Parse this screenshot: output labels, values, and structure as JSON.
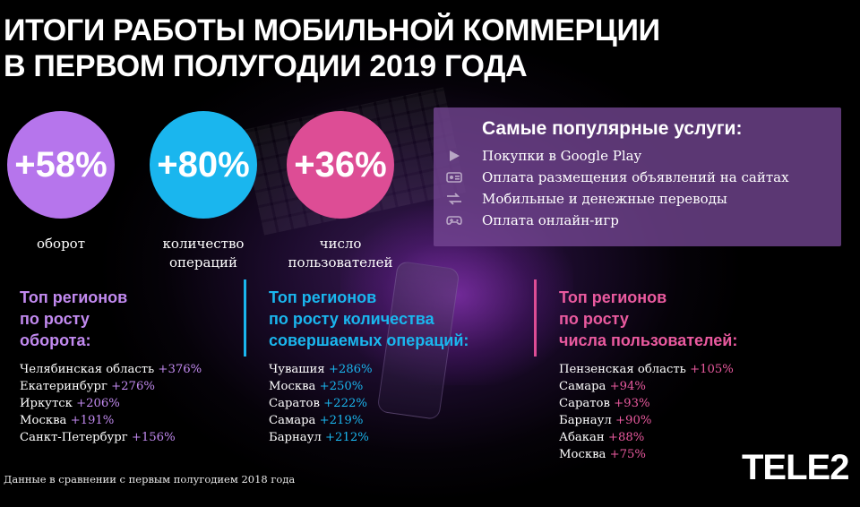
{
  "title": {
    "line1": "ИТОГИ РАБОТЫ МОБИЛЬНОЙ КОММЕРЦИИ",
    "line2": "В ПЕРВОМ ПОЛУГОДИИ 2019 ГОДА"
  },
  "stats": [
    {
      "value": "+58%",
      "label": "оборот",
      "color": "#b675ec"
    },
    {
      "value": "+80%",
      "label": "количество операций",
      "label_lines": [
        "количество",
        "операций"
      ],
      "color": "#1ab6ee"
    },
    {
      "value": "+36%",
      "label": "число пользователей",
      "label_lines": [
        "число",
        "пользователей"
      ],
      "color": "#dd4d95"
    }
  ],
  "popular_services": {
    "title": "Самые популярные услуги:",
    "items": [
      {
        "icon": "play-icon",
        "text": "Покупки в Google Play"
      },
      {
        "icon": "ad-icon",
        "text": "Оплата размещения объявлений на сайтах"
      },
      {
        "icon": "transfer-arrows-icon",
        "text": "Мобильные и денежные переводы"
      },
      {
        "icon": "gamepad-icon",
        "text": "Оплата онлайн-игр"
      }
    ],
    "box_color": "#744694"
  },
  "regions": [
    {
      "title_lines": [
        "Топ регионов",
        "по росту",
        "оборота:"
      ],
      "color": "#c28af0",
      "items": [
        {
          "name": "Челябинская область",
          "value": "+376%"
        },
        {
          "name": "Екатеринбург",
          "value": "+276%"
        },
        {
          "name": "Иркутск",
          "value": "+206%"
        },
        {
          "name": "Москва",
          "value": "+191%"
        },
        {
          "name": "Санкт-Петербург",
          "value": "+156%"
        }
      ]
    },
    {
      "title_lines": [
        "Топ регионов",
        "по росту количества",
        "совершаемых операций:"
      ],
      "color": "#1ab6ee",
      "items": [
        {
          "name": "Чувашия",
          "value": "+286%"
        },
        {
          "name": "Москва",
          "value": "+250%"
        },
        {
          "name": "Саратов",
          "value": "+222%"
        },
        {
          "name": "Самара",
          "value": "+219%"
        },
        {
          "name": "Барнаул",
          "value": "+212%"
        }
      ]
    },
    {
      "title_lines": [
        "Топ регионов",
        "по росту",
        "числа пользователей:"
      ],
      "color": "#ea5a9f",
      "items": [
        {
          "name": "Пензенская область",
          "value": "+105%"
        },
        {
          "name": "Самара",
          "value": "+94%"
        },
        {
          "name": "Саратов",
          "value": "+93%"
        },
        {
          "name": "Барнаул",
          "value": "+90%"
        },
        {
          "name": "Абакан",
          "value": "+88%"
        },
        {
          "name": "Москва",
          "value": "+75%"
        }
      ]
    }
  ],
  "footnote": "Данные в сравнении с первым полугодием 2018 года",
  "logo": "TELE2"
}
